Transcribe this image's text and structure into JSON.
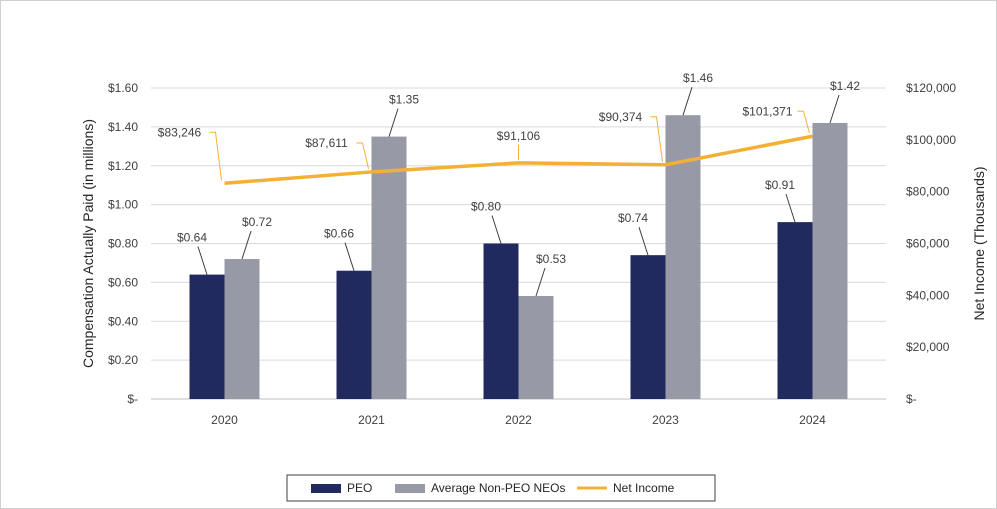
{
  "chart_data": {
    "type": "bar",
    "categories": [
      "2020",
      "2021",
      "2022",
      "2023",
      "2024"
    ],
    "series": [
      {
        "name": "PEO",
        "kind": "bar",
        "axis": "left",
        "color": "#212a5e",
        "values": [
          0.64,
          0.66,
          0.8,
          0.74,
          0.91
        ],
        "labels": [
          "$0.64",
          "$0.66",
          "$0.80",
          "$0.74",
          "$0.91"
        ]
      },
      {
        "name": "Average Non-PEO NEOs",
        "kind": "bar",
        "axis": "left",
        "color": "#9899a6",
        "values": [
          0.72,
          1.35,
          0.53,
          1.46,
          1.42
        ],
        "labels": [
          "$0.72",
          "$1.35",
          "$0.53",
          "$1.46",
          "$1.42"
        ]
      },
      {
        "name": "Net Income",
        "kind": "line",
        "axis": "right",
        "color": "#f2b134",
        "values": [
          83246,
          87611,
          91106,
          90374,
          101371
        ],
        "labels": [
          "$83,246",
          "$87,611",
          "$91,106",
          "$90,374",
          "$101,371"
        ]
      }
    ],
    "ylabel": "Compensation Actually Paid (in millions)",
    "y2label": "Net Income (Thousands)",
    "ylim": [
      0,
      1.6
    ],
    "y2lim": [
      0,
      120000
    ],
    "yticks": [
      "$-",
      "$0.20",
      "$0.40",
      "$0.60",
      "$0.80",
      "$1.00",
      "$1.20",
      "$1.40",
      "$1.60"
    ],
    "y2ticks": [
      "$-",
      "$20,000",
      "$40,000",
      "$60,000",
      "$80,000",
      "$100,000",
      "$120,000"
    ],
    "grid": true,
    "legend": "bottom"
  }
}
